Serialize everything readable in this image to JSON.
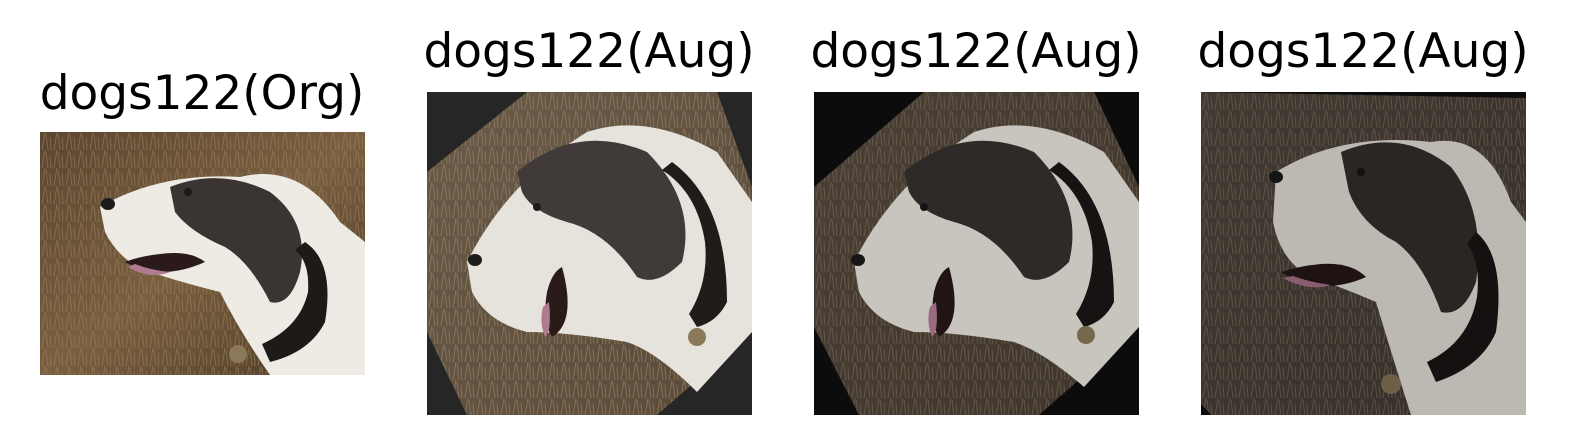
{
  "panels": [
    {
      "title": "dogs122(Org)",
      "border_color": "#ffffff",
      "rotation_deg": 0,
      "brightness": 1.0
    },
    {
      "title": "dogs122(Aug)",
      "border_color": "#262626",
      "rotation_deg": -40,
      "brightness": 0.9
    },
    {
      "title": "dogs122(Aug)",
      "border_color": "#0c0c0c",
      "rotation_deg": -42,
      "brightness": 0.75
    },
    {
      "title": "dogs122(Aug)",
      "border_color": "#0c0c0c",
      "rotation_deg": 3,
      "brightness": 0.7
    }
  ]
}
